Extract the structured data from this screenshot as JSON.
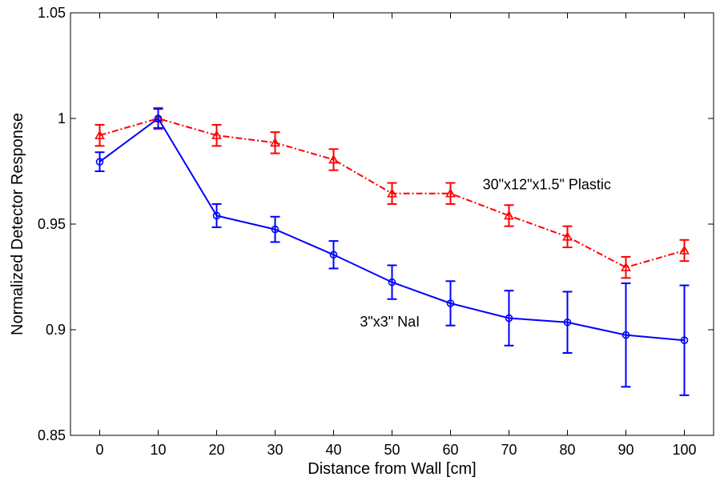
{
  "chart_data": {
    "type": "line",
    "title": "",
    "xlabel": "Distance from Wall [cm]",
    "ylabel": "Normalized Detector Response",
    "x": [
      0,
      10,
      20,
      30,
      40,
      50,
      60,
      70,
      80,
      90,
      100
    ],
    "xticks": [
      "0",
      "10",
      "20",
      "30",
      "40",
      "50",
      "60",
      "70",
      "80",
      "90",
      "100"
    ],
    "yticks": [
      "0.85",
      "0.9",
      "0.95",
      "1",
      "1.05"
    ],
    "ytick_values": [
      0.85,
      0.9,
      0.95,
      1.0,
      1.05
    ],
    "xlim": [
      -5,
      105
    ],
    "ylim": [
      0.85,
      1.05
    ],
    "grid": false,
    "series": [
      {
        "name": "30\"x12\"x1.5\" Plastic",
        "color": "#ff0000",
        "line_style": "dash-dot",
        "marker": "triangle",
        "values": [
          0.992,
          1.0,
          0.992,
          0.9885,
          0.9805,
          0.9645,
          0.9645,
          0.954,
          0.944,
          0.9295,
          0.9375
        ],
        "errors": [
          0.005,
          0.005,
          0.005,
          0.005,
          0.005,
          0.005,
          0.005,
          0.005,
          0.005,
          0.005,
          0.005
        ]
      },
      {
        "name": "3\"x3\" NaI",
        "color": "#0000ff",
        "line_style": "solid",
        "marker": "circle",
        "values": [
          0.9795,
          1.0,
          0.954,
          0.9475,
          0.9355,
          0.9225,
          0.9125,
          0.9055,
          0.9035,
          0.8975,
          0.895
        ],
        "errors": [
          0.0045,
          0.0045,
          0.0055,
          0.006,
          0.0065,
          0.008,
          0.0105,
          0.013,
          0.0145,
          0.0245,
          0.026
        ]
      }
    ],
    "annotations": [
      {
        "text": "30\"x12\"x1.5\" Plastic",
        "x": 65.5,
        "y": 0.9665
      },
      {
        "text": "3\"x3\" NaI",
        "x": 44.5,
        "y": 0.9015
      }
    ]
  }
}
